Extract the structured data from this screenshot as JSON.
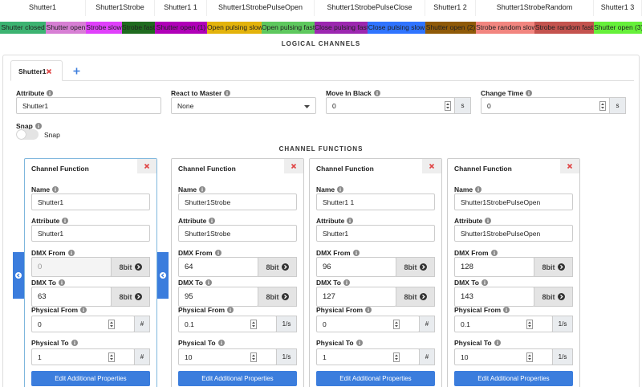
{
  "channel_bar": {
    "columns": [
      {
        "name": "Shutter1",
        "segments": [
          {
            "label": "Shutter closed",
            "color": "#3cb371"
          },
          {
            "label": "Shutter open",
            "color": "#d77fd4"
          }
        ]
      },
      {
        "name": "Shutter1Strobe",
        "segments": [
          {
            "label": "Strobe slow",
            "color": "#e040fb"
          },
          {
            "label": "Strobe fast",
            "color": "#1f6b1f"
          }
        ]
      },
      {
        "name": "Shutter1 1",
        "segments": [
          {
            "label": "Shutter open (1)",
            "color": "#b000b8"
          }
        ]
      },
      {
        "name": "Shutter1StrobePulseOpen",
        "segments": [
          {
            "label": "Open pulsing slow",
            "color": "#e3b30b"
          },
          {
            "label": "Open pulsing fast",
            "color": "#5ec85e"
          }
        ]
      },
      {
        "name": "Shutter1StrobePulseClose",
        "segments": [
          {
            "label": "Close pulsing fast",
            "color": "#9c27b0"
          },
          {
            "label": "Close pulsing slow",
            "color": "#2f74ff"
          }
        ]
      },
      {
        "name": "Shutter1 2",
        "segments": [
          {
            "label": "Shutter open (2)",
            "color": "#8f5a08"
          }
        ]
      },
      {
        "name": "Shutter1StrobeRandom",
        "segments": [
          {
            "label": "Strobe random slow",
            "color": "#f2857f"
          },
          {
            "label": "Strobe random fast",
            "color": "#c4534e"
          }
        ]
      },
      {
        "name": "Shutter1 3",
        "segments": [
          {
            "label": "Shutter open (3)",
            "color": "#66f03a"
          }
        ]
      }
    ]
  },
  "section_title": "LOGICAL CHANNELS",
  "tabs": [
    "Shutter1"
  ],
  "fields": [
    {
      "label": "Attribute",
      "value": "Shutter1"
    },
    {
      "label": "React to Master",
      "value": "None"
    },
    {
      "label": "Move In Black",
      "value": 0,
      "unit": "s"
    },
    {
      "label": "Change Time",
      "value": 0,
      "unit": "s"
    }
  ],
  "snap": {
    "label": "Snap",
    "toggle_label": "Snap"
  },
  "channel_functions": {
    "title": "CHANNEL FUNCTIONS",
    "labels": {
      "header": "Channel Function",
      "name": "Name",
      "attribute": "Attribute",
      "dmx_from": "DMX From",
      "dmx_to": "DMX To",
      "physical_from": "Physical From",
      "physical_to": "Physical To",
      "resolution": "8bit",
      "button": "Edit Additional Properties"
    },
    "cards": [
      {
        "name": "Shutter1",
        "attribute": "Shutter1",
        "dmx_from": 0,
        "dmx_to": 63,
        "physical_from": 0,
        "physical_to": 1,
        "unit": "#"
      },
      {
        "name": "Shutter1Strobe",
        "attribute": "Shutter1Strobe",
        "dmx_from": 64,
        "dmx_to": 95,
        "physical_from": 0.1,
        "physical_to": 10,
        "unit": "1/s"
      },
      {
        "name": "Shutter1 1",
        "attribute": "Shutter1",
        "dmx_from": 96,
        "dmx_to": 127,
        "physical_from": 0,
        "physical_to": 1,
        "unit": "#"
      },
      {
        "name": "Shutter1StrobePulseOpen",
        "attribute": "Shutter1StrobePulseOpen",
        "dmx_from": 128,
        "dmx_to": 143,
        "physical_from": 0.1,
        "physical_to": 10,
        "unit": "1/s"
      }
    ]
  }
}
